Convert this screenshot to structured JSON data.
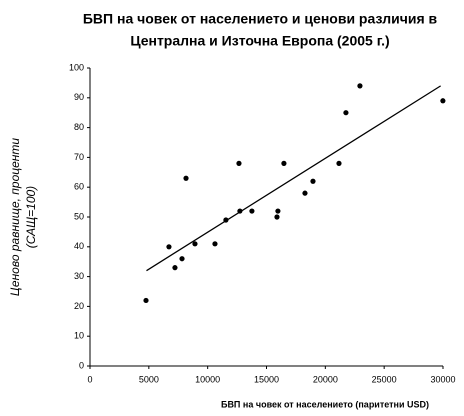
{
  "chart_data": {
    "type": "scatter",
    "title": [
      "БВП на човек от населението и ценови различия в",
      "Централна и Източна Европа (2005 г.)"
    ],
    "xlabel": "БВП на човек от населението  (паритетни USD)",
    "ylabel": [
      "Ценово равнище, проценти",
      "(САЩ=100)"
    ],
    "x": [
      4760,
      6710,
      7220,
      7820,
      8160,
      8920,
      10620,
      11550,
      12660,
      12740,
      13760,
      15890,
      15970,
      16480,
      18270,
      18950,
      21160,
      21750,
      22940,
      29990
    ],
    "values": [
      22,
      40,
      33,
      36,
      63,
      41,
      41,
      49,
      68,
      52,
      52,
      50,
      52,
      68,
      58,
      62,
      68,
      85,
      94,
      89
    ],
    "color": "#000000",
    "trendline": {
      "x": [
        4800,
        29800
      ],
      "y": [
        32,
        94
      ]
    },
    "xlim": [
      0,
      30000
    ],
    "xticks": [
      0,
      5000,
      10000,
      15000,
      20000,
      25000,
      30000
    ],
    "ylim": [
      0,
      100
    ],
    "yticks": [
      0,
      10,
      20,
      30,
      40,
      50,
      60,
      70,
      80,
      90,
      100
    ],
    "grid": false
  }
}
